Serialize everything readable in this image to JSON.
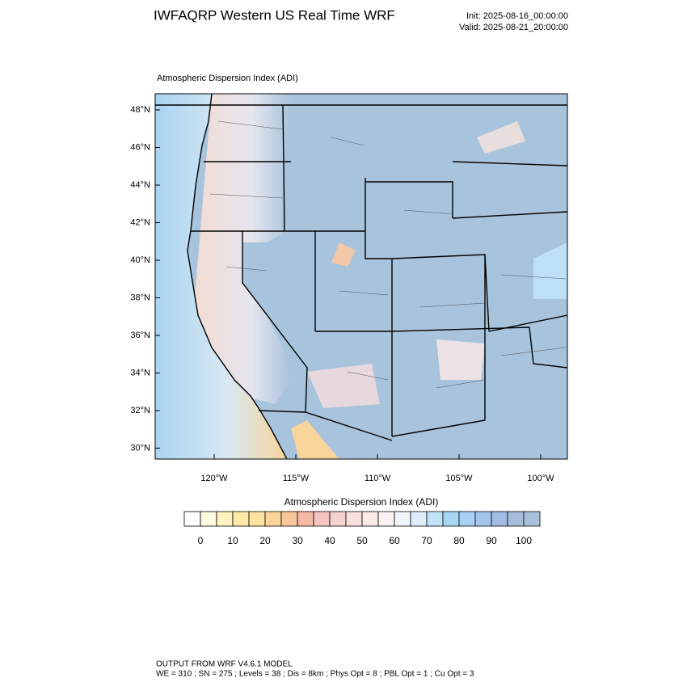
{
  "header": {
    "title": "IWFAQRP Western US Real Time WRF",
    "init": "Init: 2025-08-16_00:00:00",
    "valid": "Valid: 2025-08-21_20:00:00"
  },
  "map": {
    "subtitle": "Atmospheric Dispersion Index   (ADI)",
    "lat_labels": [
      "48°N",
      "46°N",
      "44°N",
      "42°N",
      "40°N",
      "38°N",
      "36°N",
      "34°N",
      "32°N",
      "30°N"
    ],
    "lon_labels": [
      "120°W",
      "115°W",
      "110°W",
      "105°W",
      "100°W"
    ]
  },
  "colorbar": {
    "title": "Atmospheric Dispersion Index  (ADI)",
    "colors": [
      "#ffffff",
      "#fffbe0",
      "#fff3c0",
      "#ffeaa6",
      "#fde2a0",
      "#fbd49a",
      "#f8c89c",
      "#f5b9a6",
      "#f4c4c0",
      "#f6d2d0",
      "#f8e0de",
      "#fbeae8",
      "#fcf2f2",
      "#f2f6fc",
      "#dfeefa",
      "#c2e4f8",
      "#a6d8f4",
      "#a8d0f4",
      "#a4c4ec",
      "#a2bce4",
      "#a6bedc",
      "#a8c0d8"
    ],
    "ticks": [
      0,
      10,
      20,
      30,
      40,
      50,
      60,
      70,
      80,
      90,
      100
    ]
  },
  "footer": {
    "line1": "OUTPUT FROM WRF V4.6.1 MODEL",
    "line2": "WE = 310 ; SN = 275 ; Levels = 38 ; Dis = 8km ; Phys Opt = 8 ; PBL Opt = 1 ; Cu Opt = 3"
  }
}
